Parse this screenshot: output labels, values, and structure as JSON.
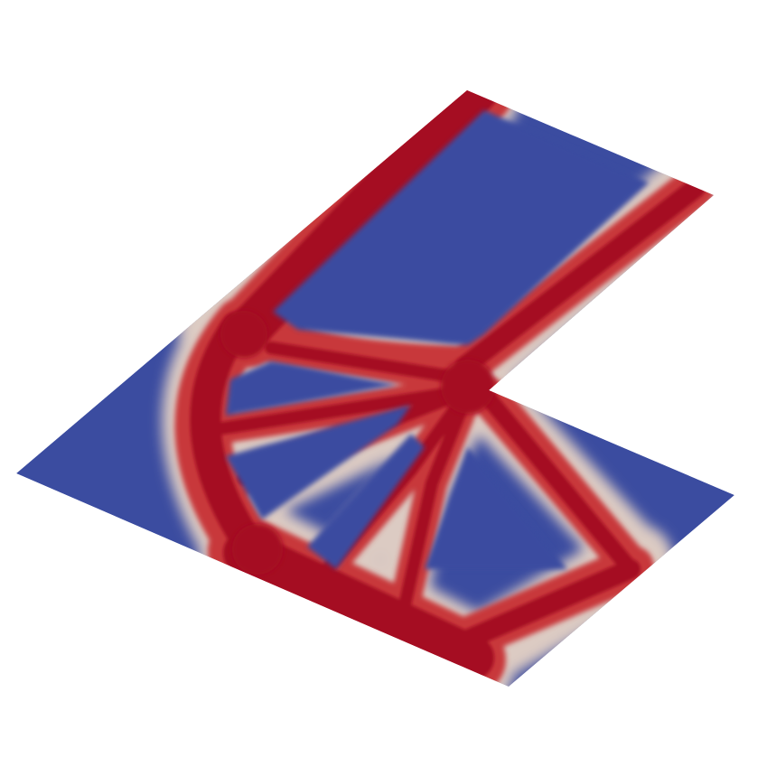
{
  "scene": {
    "kind": "topology-optimization-density-field",
    "domain_shape": "L-shaped plate",
    "projection": "isometric",
    "colormap": "cool-to-warm",
    "colors": {
      "void": "#3B4CA0",
      "void_light": "#6F8BD6",
      "solid": "#B40426",
      "solid_light": "#D9534A",
      "transition": "#E7D6CF",
      "background": "#FFFFFF"
    }
  }
}
